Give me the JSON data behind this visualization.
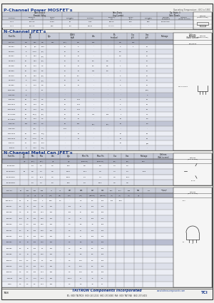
{
  "bg_color": "#f0f0ee",
  "page_bg": "#e8e8e4",
  "blue": "#1a3a8c",
  "header_bg": "#c8ccd8",
  "alt_row1": "#dde0ea",
  "alt_row2": "#eceef5",
  "dark_header": "#b0b4c4",
  "footer_company": "TAITRON Components Incorporated",
  "footer_web": "www.taitroncomponents.com",
  "footer_phone": "TEL: (800) TAITRON  (800) 247-2232  (661) 257-6060  FAX: (800) TAIT-FAX  (661) 257-6415",
  "page_num": "768",
  "tci": "TCI",
  "op_temp": "Operating Temperature: -65C to 150C",
  "sec1_title": "P-Channel Power MOSFET's",
  "sec2_title": "N-Channel JFET's",
  "sec3_title": "N-Channel Metal Can JFET's"
}
